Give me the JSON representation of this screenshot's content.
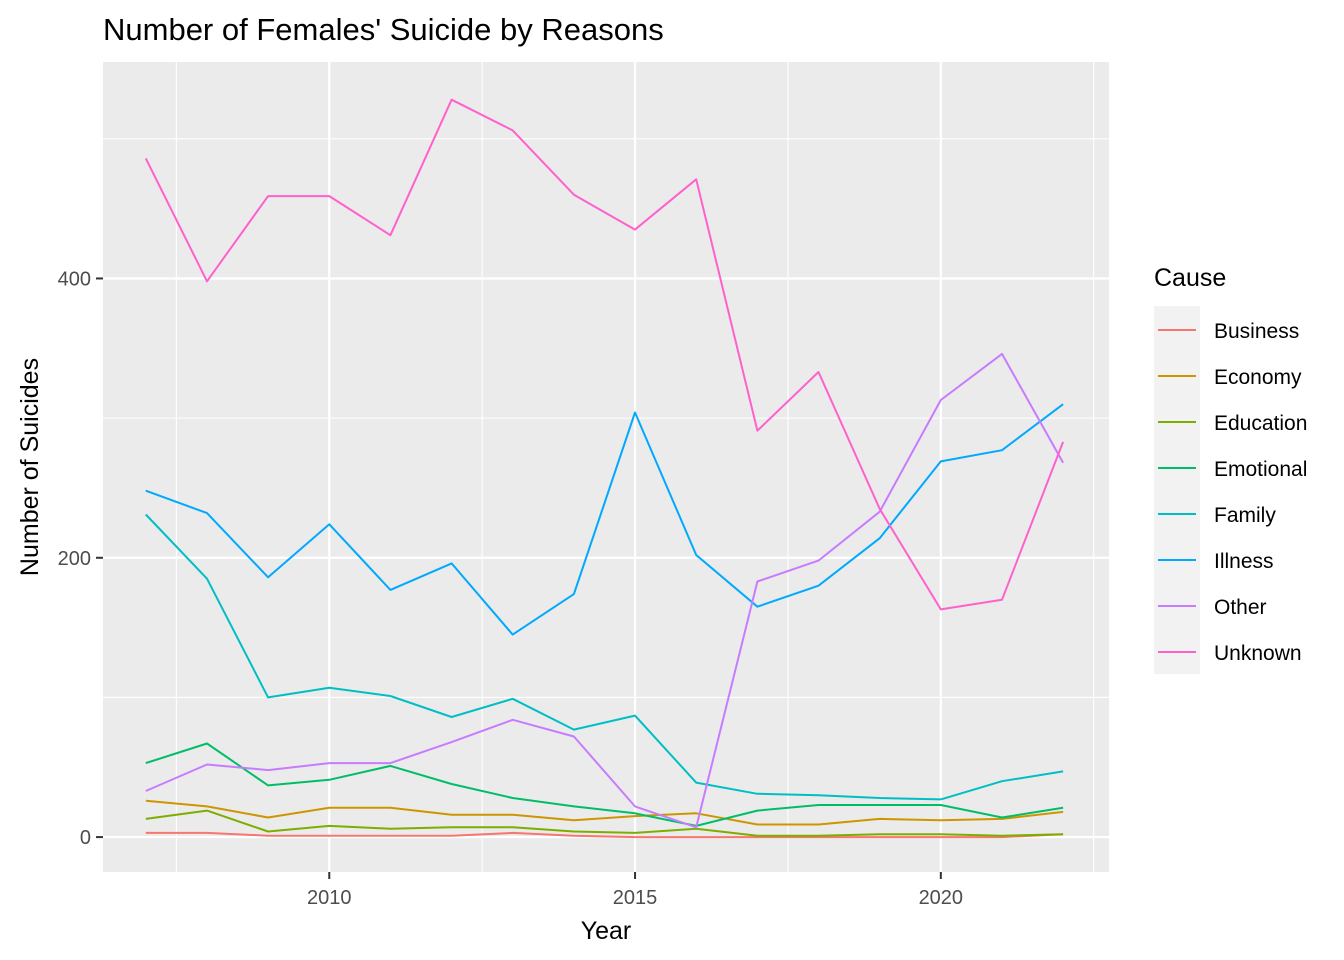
{
  "chart_data": {
    "type": "line",
    "title": "Number of Females' Suicide by Reasons",
    "xlabel": "Year",
    "ylabel": "Number of Suicides",
    "legend_title": "Cause",
    "legend_position": "right",
    "grid": true,
    "xlim": [
      2006.3,
      2022.75
    ],
    "ylim": [
      -25,
      555
    ],
    "x_ticks": [
      2010,
      2015,
      2020
    ],
    "y_ticks": [
      0,
      200,
      400
    ],
    "x": [
      2007,
      2008,
      2009,
      2010,
      2011,
      2012,
      2013,
      2014,
      2015,
      2016,
      2017,
      2018,
      2019,
      2020,
      2021,
      2022
    ],
    "series": [
      {
        "name": "Business",
        "color": "#F8766D",
        "values": [
          3,
          3,
          1,
          1,
          1,
          1,
          3,
          1,
          0,
          0,
          0,
          0,
          0,
          0,
          0,
          2
        ]
      },
      {
        "name": "Economy",
        "color": "#CD9600",
        "values": [
          26,
          22,
          14,
          21,
          21,
          16,
          16,
          12,
          15,
          17,
          9,
          9,
          13,
          12,
          13,
          18
        ]
      },
      {
        "name": "Education",
        "color": "#7CAE00",
        "values": [
          13,
          19,
          4,
          8,
          6,
          7,
          7,
          4,
          3,
          6,
          1,
          1,
          2,
          2,
          1,
          2
        ]
      },
      {
        "name": "Emotional",
        "color": "#00BE67",
        "values": [
          53,
          67,
          37,
          41,
          51,
          38,
          28,
          22,
          17,
          8,
          19,
          23,
          23,
          23,
          14,
          21
        ]
      },
      {
        "name": "Family",
        "color": "#00BFC4",
        "values": [
          231,
          185,
          100,
          107,
          101,
          86,
          99,
          77,
          87,
          39,
          31,
          30,
          28,
          27,
          40,
          47
        ]
      },
      {
        "name": "Illness",
        "color": "#00A9FF",
        "values": [
          248,
          232,
          186,
          224,
          177,
          196,
          145,
          174,
          304,
          202,
          165,
          180,
          214,
          269,
          277,
          310
        ]
      },
      {
        "name": "Other",
        "color": "#C77CFF",
        "values": [
          33,
          52,
          48,
          53,
          53,
          68,
          84,
          72,
          22,
          7,
          183,
          198,
          233,
          313,
          346,
          268
        ]
      },
      {
        "name": "Unknown",
        "color": "#FF61CC",
        "values": [
          486,
          398,
          459,
          459,
          431,
          528,
          506,
          460,
          435,
          471,
          291,
          333,
          235,
          163,
          170,
          283
        ]
      }
    ]
  }
}
